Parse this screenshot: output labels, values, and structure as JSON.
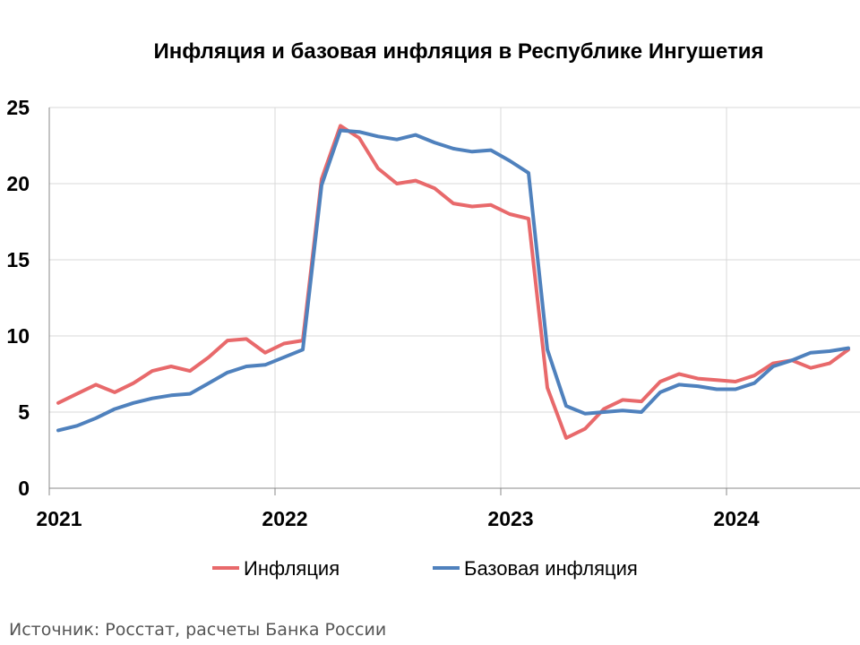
{
  "chart_data": {
    "type": "line",
    "title": "Инфляция и базовая инфляция в Республике Ингушетия",
    "xlabel": "",
    "ylabel": "",
    "ylim": [
      0,
      25
    ],
    "yticks": [
      "0",
      "5",
      "10",
      "15",
      "20",
      "25"
    ],
    "xticks": [
      "2021",
      "2022",
      "2023",
      "2024"
    ],
    "x_start": "2021-01",
    "x_end": "2024-07",
    "grid": true,
    "legend": "bottom",
    "series": [
      {
        "name": "Инфляция",
        "color": "#E8696B",
        "values": [
          5.6,
          6.2,
          6.8,
          6.3,
          6.9,
          7.7,
          8.0,
          7.7,
          8.6,
          9.7,
          9.8,
          8.9,
          9.5,
          9.7,
          20.3,
          23.8,
          23.0,
          21.0,
          20.0,
          20.2,
          19.7,
          18.7,
          18.5,
          18.6,
          18.0,
          17.7,
          6.6,
          3.3,
          3.9,
          5.2,
          5.8,
          5.7,
          7.0,
          7.5,
          7.2,
          7.1,
          7.0,
          7.4,
          8.2,
          8.4,
          7.9,
          8.2,
          9.1
        ]
      },
      {
        "name": "Базовая инфляция",
        "color": "#4F81BD",
        "values": [
          3.8,
          4.1,
          4.6,
          5.2,
          5.6,
          5.9,
          6.1,
          6.2,
          6.9,
          7.6,
          8.0,
          8.1,
          8.6,
          9.1,
          19.9,
          23.5,
          23.4,
          23.1,
          22.9,
          23.2,
          22.7,
          22.3,
          22.1,
          22.2,
          21.5,
          20.7,
          9.1,
          5.4,
          4.9,
          5.0,
          5.1,
          5.0,
          6.3,
          6.8,
          6.7,
          6.5,
          6.5,
          6.9,
          8.0,
          8.4,
          8.9,
          9.0,
          9.2
        ]
      }
    ]
  },
  "source": "Источник: Росстат, расчеты Банка России"
}
